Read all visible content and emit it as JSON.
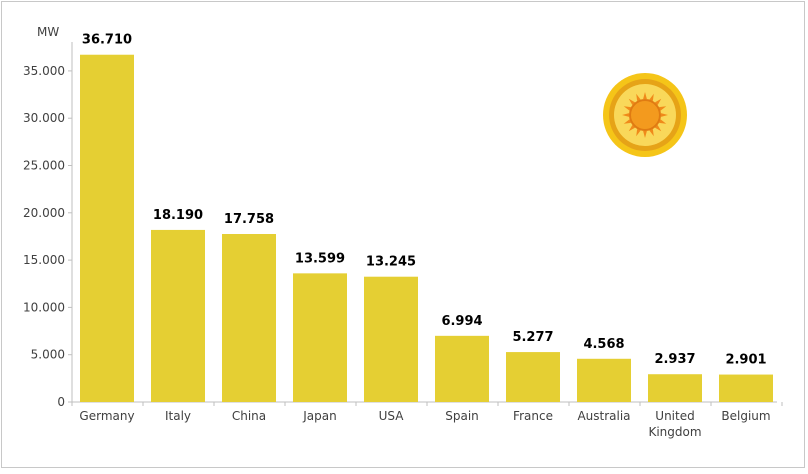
{
  "chart_data": {
    "type": "bar",
    "ylabel": "MW",
    "categories": [
      "Germany",
      "Italy",
      "China",
      "Japan",
      "USA",
      "Spain",
      "France",
      "Australia",
      "United\nKingdom",
      "Belgium"
    ],
    "values": [
      36710,
      18190,
      17758,
      13599,
      13245,
      6994,
      5277,
      4568,
      2937,
      2901
    ],
    "value_labels": [
      "36.710",
      "18.190",
      "17.758",
      "13.599",
      "13.245",
      "6.994",
      "5.277",
      "4.568",
      "2.937",
      "2.901"
    ],
    "y_ticks": [
      0,
      5000,
      10000,
      15000,
      20000,
      25000,
      30000,
      35000
    ],
    "y_tick_labels": [
      "0",
      "5.000",
      "10.000",
      "15.000",
      "20.000",
      "25.000",
      "30.000",
      "35.000"
    ],
    "ylim": [
      0,
      40000
    ],
    "grid": false,
    "legend": "none",
    "colors": {
      "bar": "#e5cf33",
      "axis": "#bfbfbf",
      "sun_outer": "#f3c21c",
      "sun_ring": "#e6a317",
      "sun_core": "#f6a21d"
    }
  },
  "decoration": {
    "icon": "sun-icon"
  }
}
